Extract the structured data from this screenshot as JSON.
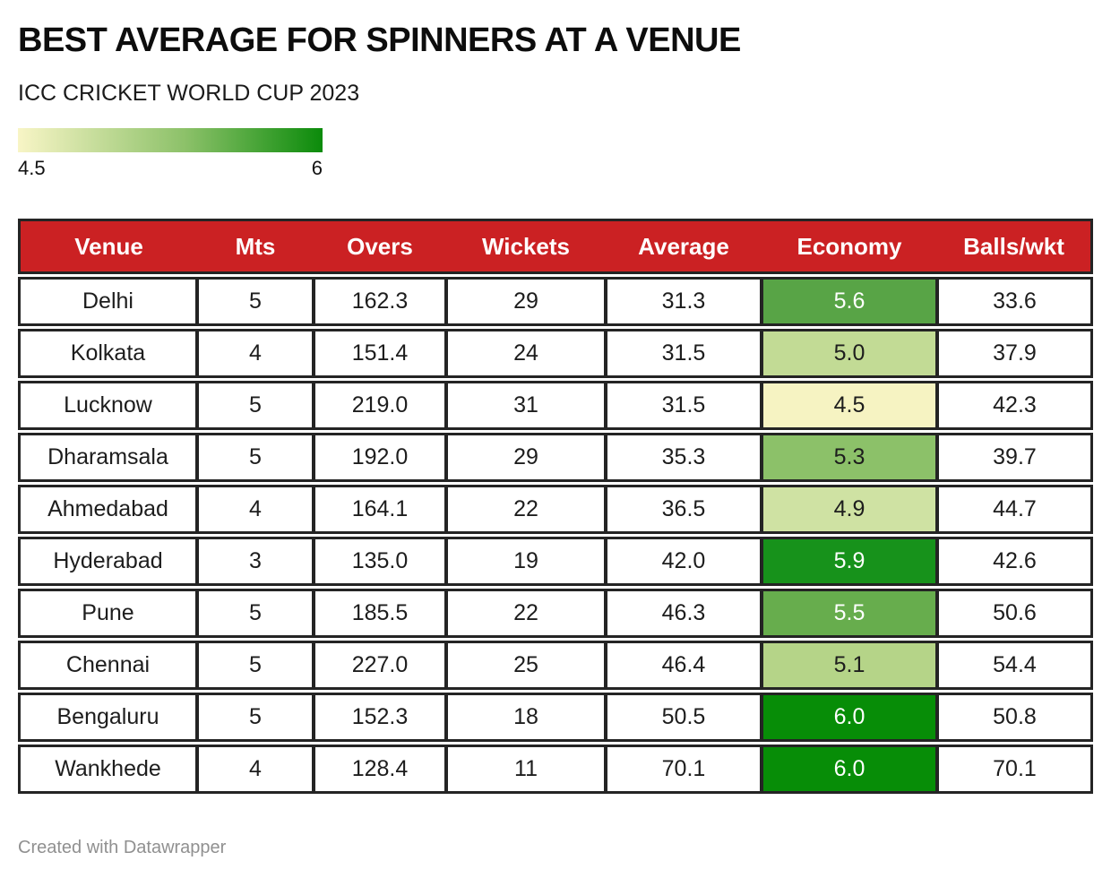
{
  "header": {
    "title": "BEST AVERAGE FOR SPINNERS AT A VENUE",
    "subtitle": "ICC CRICKET WORLD CUP 2023"
  },
  "legend": {
    "min_label": "4.5",
    "max_label": "6",
    "gradient_start": "#f8f5c6",
    "gradient_mid": "#8cc169",
    "gradient_end": "#0b8b0b"
  },
  "colors": {
    "header_bg": "#cb2123",
    "header_text": "#ffffff",
    "border": "#242424"
  },
  "chart_data": {
    "type": "table",
    "title": "BEST AVERAGE FOR SPINNERS AT A VENUE",
    "subtitle": "ICC CRICKET WORLD CUP 2023",
    "columns": [
      "Venue",
      "Mts",
      "Overs",
      "Wickets",
      "Average",
      "Economy",
      "Balls/wkt"
    ],
    "color_scale": {
      "applies_to_column": "Economy",
      "min": 4.5,
      "max": 6,
      "min_color": "#f8f5c6",
      "max_color": "#0b8b0b"
    },
    "rows": [
      {
        "venue": "Delhi",
        "mts": "5",
        "overs": "162.3",
        "wickets": "29",
        "average": "31.3",
        "economy": "5.6",
        "balls_wkt": "33.6",
        "economy_bg": "#58a446",
        "economy_text": "#ffffff"
      },
      {
        "venue": "Kolkata",
        "mts": "4",
        "overs": "151.4",
        "wickets": "24",
        "average": "31.5",
        "economy": "5.0",
        "balls_wkt": "37.9",
        "economy_bg": "#c2db95",
        "economy_text": "#1d1d1d"
      },
      {
        "venue": "Lucknow",
        "mts": "5",
        "overs": "219.0",
        "wickets": "31",
        "average": "31.5",
        "economy": "4.5",
        "balls_wkt": "42.3",
        "economy_bg": "#f6f3c2",
        "economy_text": "#1d1d1d"
      },
      {
        "venue": "Dharamsala",
        "mts": "5",
        "overs": "192.0",
        "wickets": "29",
        "average": "35.3",
        "economy": "5.3",
        "balls_wkt": "39.7",
        "economy_bg": "#8cc169",
        "economy_text": "#1d1d1d"
      },
      {
        "venue": "Ahmedabad",
        "mts": "4",
        "overs": "164.1",
        "wickets": "22",
        "average": "36.5",
        "economy": "4.9",
        "balls_wkt": "44.7",
        "economy_bg": "#cfe2a3",
        "economy_text": "#1d1d1d"
      },
      {
        "venue": "Hyderabad",
        "mts": "3",
        "overs": "135.0",
        "wickets": "19",
        "average": "42.0",
        "economy": "5.9",
        "balls_wkt": "42.6",
        "economy_bg": "#17921b",
        "economy_text": "#ffffff"
      },
      {
        "venue": "Pune",
        "mts": "5",
        "overs": "185.5",
        "wickets": "22",
        "average": "46.3",
        "economy": "5.5",
        "balls_wkt": "50.6",
        "economy_bg": "#67ad4d",
        "economy_text": "#ffffff"
      },
      {
        "venue": "Chennai",
        "mts": "5",
        "overs": "227.0",
        "wickets": "25",
        "average": "46.4",
        "economy": "5.1",
        "balls_wkt": "54.4",
        "economy_bg": "#b5d488",
        "economy_text": "#1d1d1d"
      },
      {
        "venue": "Bengaluru",
        "mts": "5",
        "overs": "152.3",
        "wickets": "18",
        "average": "50.5",
        "economy": "6.0",
        "balls_wkt": "50.8",
        "economy_bg": "#078d07",
        "economy_text": "#ffffff"
      },
      {
        "venue": "Wankhede",
        "mts": "4",
        "overs": "128.4",
        "wickets": "11",
        "average": "70.1",
        "economy": "6.0",
        "balls_wkt": "70.1",
        "economy_bg": "#078d07",
        "economy_text": "#ffffff"
      }
    ]
  },
  "footer": {
    "credit": "Created with Datawrapper"
  }
}
